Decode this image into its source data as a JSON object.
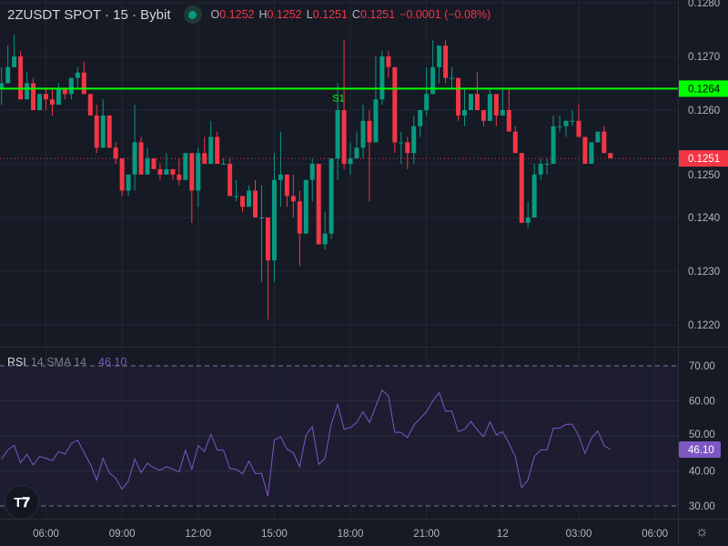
{
  "header": {
    "symbol": "2ZUSDT SPOT · 15 · Bybit",
    "status_color": "#089981",
    "o_label": "O",
    "o": "0.1252",
    "h_label": "H",
    "h": "0.1252",
    "l_label": "L",
    "l": "0.1251",
    "c_label": "C",
    "c": "0.1251",
    "change": "−0.0001 (−0.08%)"
  },
  "rsi_legend": {
    "name": "RSI",
    "params": "14 SMA 14",
    "value": "46.10"
  },
  "price_axis": {
    "ticks": [
      "0.1280",
      "0.1270",
      "0.1260",
      "0.1250",
      "0.1240",
      "0.1230",
      "0.1220"
    ],
    "support_tag": "0.1264",
    "last_tag": "0.1251"
  },
  "rsi_axis": {
    "ticks": [
      "70.00",
      "60.00",
      "50.00",
      "40.00",
      "30.00"
    ],
    "tag": "46.10"
  },
  "time_axis": {
    "ticks": [
      "06:00",
      "09:00",
      "12:00",
      "15:00",
      "18:00",
      "21:00",
      "12",
      "03:00",
      "06:00"
    ]
  },
  "support_line": {
    "label": "S1",
    "price": 0.1264,
    "color": "#00ff00"
  },
  "last_price": 0.1251,
  "colors": {
    "up": "#089981",
    "down": "#f23645",
    "rsi": "#7e57c2",
    "background": "#161a25"
  },
  "logo": "TV",
  "icons": {
    "settings": "gear-icon"
  },
  "chart_data": [
    {
      "type": "candlestick",
      "interval": "15",
      "ylim": [
        0.1215,
        0.1281
      ],
      "grid": true,
      "ohlc": [
        [
          0.1264,
          0.1268,
          0.1261,
          0.1265
        ],
        [
          0.1265,
          0.1272,
          0.1265,
          0.1268
        ],
        [
          0.1268,
          0.1274,
          0.1268,
          0.127
        ],
        [
          0.127,
          0.1271,
          0.1262,
          0.1262
        ],
        [
          0.1262,
          0.1267,
          0.1262,
          0.1265
        ],
        [
          0.1265,
          0.1266,
          0.126,
          0.126
        ],
        [
          0.126,
          0.1263,
          0.126,
          0.1263
        ],
        [
          0.1263,
          0.1264,
          0.126,
          0.1262
        ],
        [
          0.1262,
          0.1264,
          0.1259,
          0.1261
        ],
        [
          0.1261,
          0.1265,
          0.1261,
          0.1264
        ],
        [
          0.1264,
          0.1264,
          0.1262,
          0.1263
        ],
        [
          0.1263,
          0.1266,
          0.1262,
          0.1266
        ],
        [
          0.1266,
          0.1268,
          0.1264,
          0.1267
        ],
        [
          0.1267,
          0.1269,
          0.1263,
          0.1263
        ],
        [
          0.1263,
          0.1263,
          0.1259,
          0.1259
        ],
        [
          0.1259,
          0.1261,
          0.1252,
          0.1253
        ],
        [
          0.1253,
          0.1262,
          0.1253,
          0.1259
        ],
        [
          0.1259,
          0.1259,
          0.1253,
          0.1253
        ],
        [
          0.1253,
          0.1254,
          0.125,
          0.1251
        ],
        [
          0.1251,
          0.1251,
          0.1244,
          0.1245
        ],
        [
          0.1245,
          0.1248,
          0.1244,
          0.1248
        ],
        [
          0.1248,
          0.1261,
          0.1245,
          0.1254
        ],
        [
          0.1254,
          0.1255,
          0.1248,
          0.1248
        ],
        [
          0.1248,
          0.1253,
          0.1248,
          0.1251
        ],
        [
          0.1251,
          0.1251,
          0.1249,
          0.1249
        ],
        [
          0.1249,
          0.125,
          0.1247,
          0.1248
        ],
        [
          0.1248,
          0.1252,
          0.1248,
          0.1249
        ],
        [
          0.1249,
          0.1249,
          0.1247,
          0.1248
        ],
        [
          0.1248,
          0.1251,
          0.1246,
          0.1247
        ],
        [
          0.1247,
          0.1252,
          0.1247,
          0.1252
        ],
        [
          0.1252,
          0.1252,
          0.1239,
          0.1245
        ],
        [
          0.1245,
          0.1253,
          0.1242,
          0.1252
        ],
        [
          0.1252,
          0.1255,
          0.125,
          0.125
        ],
        [
          0.125,
          0.1258,
          0.125,
          0.1255
        ],
        [
          0.1255,
          0.1256,
          0.125,
          0.125
        ],
        [
          0.125,
          0.1251,
          0.125,
          0.125
        ],
        [
          0.125,
          0.1251,
          0.1244,
          0.1244
        ],
        [
          0.1244,
          0.1247,
          0.1243,
          0.1244
        ],
        [
          0.1244,
          0.1244,
          0.1241,
          0.1242
        ],
        [
          0.1242,
          0.1246,
          0.1242,
          0.1245
        ],
        [
          0.1245,
          0.1247,
          0.124,
          0.124
        ],
        [
          0.124,
          0.1246,
          0.1228,
          0.124
        ],
        [
          0.124,
          0.124,
          0.1221,
          0.1232
        ],
        [
          0.1232,
          0.1252,
          0.1228,
          0.1247
        ],
        [
          0.1247,
          0.1256,
          0.1242,
          0.1248
        ],
        [
          0.1248,
          0.1248,
          0.1242,
          0.1244
        ],
        [
          0.1244,
          0.1248,
          0.124,
          0.1243
        ],
        [
          0.1243,
          0.1245,
          0.1231,
          0.1237
        ],
        [
          0.1237,
          0.1247,
          0.1237,
          0.1247
        ],
        [
          0.1247,
          0.1251,
          0.1243,
          0.125
        ],
        [
          0.125,
          0.125,
          0.1235,
          0.1235
        ],
        [
          0.1235,
          0.1241,
          0.1234,
          0.1237
        ],
        [
          0.1237,
          0.1251,
          0.1236,
          0.1251
        ],
        [
          0.1251,
          0.1265,
          0.1247,
          0.126
        ],
        [
          0.126,
          0.1273,
          0.1249,
          0.125
        ],
        [
          0.125,
          0.1254,
          0.1248,
          0.1251
        ],
        [
          0.1251,
          0.1256,
          0.1251,
          0.1253
        ],
        [
          0.1253,
          0.1261,
          0.1251,
          0.1258
        ],
        [
          0.1258,
          0.126,
          0.1243,
          0.1254
        ],
        [
          0.1254,
          0.127,
          0.1254,
          0.1262
        ],
        [
          0.1262,
          0.1271,
          0.1261,
          0.127
        ],
        [
          0.127,
          0.1271,
          0.1266,
          0.1268
        ],
        [
          0.1268,
          0.1268,
          0.1252,
          0.1254
        ],
        [
          0.1254,
          0.1256,
          0.125,
          0.1254
        ],
        [
          0.1254,
          0.1255,
          0.1249,
          0.1252
        ],
        [
          0.1252,
          0.1259,
          0.125,
          0.1257
        ],
        [
          0.1257,
          0.126,
          0.1255,
          0.126
        ],
        [
          0.126,
          0.1268,
          0.1259,
          0.1263
        ],
        [
          0.1263,
          0.1273,
          0.1263,
          0.1268
        ],
        [
          0.1268,
          0.1272,
          0.1265,
          0.1272
        ],
        [
          0.1272,
          0.1273,
          0.1265,
          0.1266
        ],
        [
          0.1266,
          0.1268,
          0.1264,
          0.1266
        ],
        [
          0.1266,
          0.1266,
          0.1258,
          0.1259
        ],
        [
          0.1259,
          0.1264,
          0.1257,
          0.126
        ],
        [
          0.126,
          0.1263,
          0.126,
          0.1263
        ],
        [
          0.1263,
          0.1267,
          0.126,
          0.126
        ],
        [
          0.126,
          0.126,
          0.1257,
          0.1258
        ],
        [
          0.1258,
          0.1264,
          0.1258,
          0.1263
        ],
        [
          0.1263,
          0.1263,
          0.1257,
          0.1259
        ],
        [
          0.1259,
          0.1264,
          0.1259,
          0.126
        ],
        [
          0.126,
          0.1264,
          0.1256,
          0.1256
        ],
        [
          0.1256,
          0.1257,
          0.1252,
          0.1252
        ],
        [
          0.1252,
          0.1252,
          0.1239,
          0.1239
        ],
        [
          0.1239,
          0.1243,
          0.1238,
          0.124
        ],
        [
          0.124,
          0.125,
          0.124,
          0.1248
        ],
        [
          0.1248,
          0.1251,
          0.1247,
          0.125
        ],
        [
          0.125,
          0.1251,
          0.1248,
          0.125
        ],
        [
          0.125,
          0.1259,
          0.125,
          0.1257
        ],
        [
          0.1257,
          0.1259,
          0.1256,
          0.1257
        ],
        [
          0.1257,
          0.1258,
          0.1255,
          0.1258
        ],
        [
          0.1258,
          0.126,
          0.1257,
          0.1258
        ],
        [
          0.1258,
          0.1261,
          0.1255,
          0.1255
        ],
        [
          0.1255,
          0.1255,
          0.125,
          0.125
        ],
        [
          0.125,
          0.1254,
          0.125,
          0.1254
        ],
        [
          0.1254,
          0.1256,
          0.1254,
          0.1256
        ],
        [
          0.1256,
          0.1257,
          0.1252,
          0.1252
        ],
        [
          0.1252,
          0.1252,
          0.1251,
          0.1251
        ]
      ]
    },
    {
      "type": "line",
      "ylim": [
        30,
        70
      ],
      "rsi": [
        43.4,
        46,
        47.3,
        42.3,
        44.7,
        41.7,
        44.1,
        43.6,
        42.9,
        45.5,
        44.8,
        47.8,
        48.8,
        45.3,
        41.9,
        37.4,
        43.6,
        39.5,
        37.9,
        34.8,
        37.1,
        43.4,
        39.5,
        42.2,
        40.9,
        40.2,
        41.2,
        40.5,
        39.7,
        45.9,
        40.5,
        47.2,
        45.5,
        50.5,
        46,
        45.9,
        40.7,
        40.5,
        39.1,
        42.8,
        39.3,
        39.3,
        32.8,
        48.8,
        49.7,
        46.2,
        45.2,
        41.2,
        50.3,
        52.6,
        41.9,
        43.6,
        53.5,
        59,
        51.9,
        52.4,
        53.8,
        56.9,
        53.8,
        58.4,
        63.1,
        61.4,
        51,
        51,
        49.5,
        53.1,
        55,
        56.9,
        60,
        62.4,
        57.1,
        57.1,
        51.2,
        51.9,
        54.1,
        51.7,
        49.8,
        54,
        50.3,
        51.2,
        47.9,
        44.1,
        35.2,
        37.4,
        44.1,
        46,
        46,
        52.2,
        52.2,
        53.3,
        53.3,
        50,
        45,
        49.3,
        51.4,
        47.2,
        46.1
      ]
    }
  ]
}
